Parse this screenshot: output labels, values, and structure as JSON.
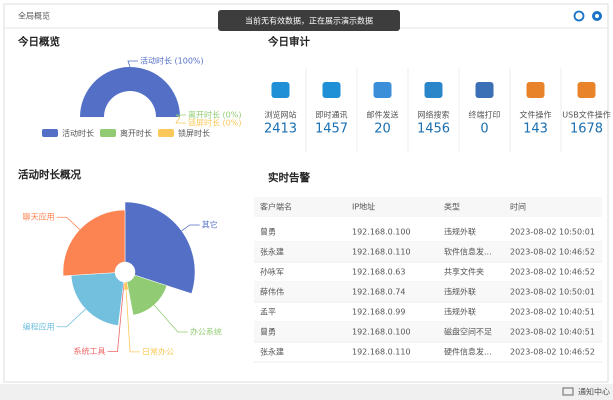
{
  "header": {
    "title": "全局概览",
    "notice": "当前无有效数据，正在展示演示数据"
  },
  "chart_data": [
    {
      "type": "donut",
      "title": "今日概览",
      "categories": [
        "活动时长",
        "离开时长",
        "锁屏时长"
      ],
      "values": [
        100,
        0,
        0
      ],
      "value_labels": [
        "活动时长 (100%)",
        "离开时长 (0%)",
        "锁屏时长 (0%)"
      ],
      "colors": [
        "#5470c6",
        "#91cc75",
        "#fac858"
      ]
    },
    {
      "type": "rose",
      "title": "活动时长概况",
      "categories": [
        "其它",
        "办公系统",
        "日常办公",
        "系统工具",
        "编程应用",
        "聊天应用"
      ],
      "values": [
        30,
        17,
        4,
        1,
        22,
        26
      ],
      "colors": [
        "#5470c6",
        "#91cc75",
        "#fac858",
        "#ee6666",
        "#73c0de",
        "#fc8452"
      ]
    }
  ],
  "audit": {
    "title": "今日审计",
    "items": [
      {
        "label": "浏览网站",
        "value": 2413
      },
      {
        "label": "即时通讯",
        "value": 1457
      },
      {
        "label": "邮件发送",
        "value": 20
      },
      {
        "label": "网络搜索",
        "value": 1456
      },
      {
        "label": "终端打印",
        "value": 0
      },
      {
        "label": "文件操作",
        "value": 143
      },
      {
        "label": "USB文件操作",
        "value": 1678
      }
    ]
  },
  "alerts": {
    "title": "实时告警",
    "columns": [
      "客户端名",
      "IP地址",
      "类型",
      "时间"
    ],
    "rows": [
      [
        "曾勇",
        "192.168.0.100",
        "违规外联",
        "2023-08-02 10:50:01"
      ],
      [
        "张永建",
        "192.168.0.110",
        "软件信息发...",
        "2023-08-02 10:46:52"
      ],
      [
        "孙咏军",
        "192.168.0.63",
        "共享文件夹",
        "2023-08-02 10:46:52"
      ],
      [
        "薛伟伟",
        "192.168.0.74",
        "违规外联",
        "2023-08-02 10:50:01"
      ],
      [
        "孟平",
        "192.168.0.99",
        "违规外联",
        "2023-08-02 10:40:51"
      ],
      [
        "曾勇",
        "192.168.0.100",
        "磁盘空间不足",
        "2023-08-02 10:40:51"
      ],
      [
        "张永建",
        "192.168.0.110",
        "硬件信息发...",
        "2023-08-02 10:46:52"
      ]
    ]
  },
  "footer": {
    "notification": "通知中心"
  }
}
